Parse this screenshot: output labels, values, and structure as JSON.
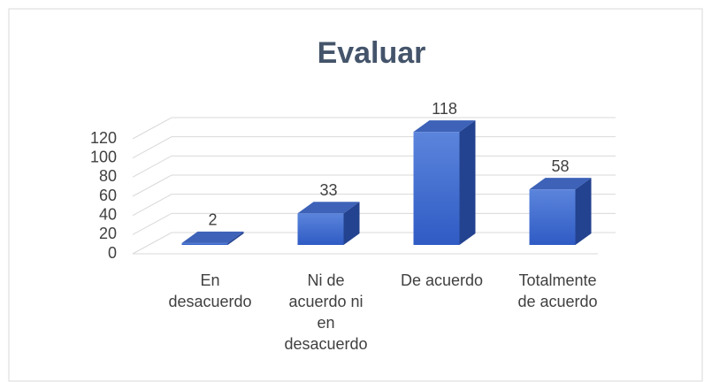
{
  "chart_data": {
    "type": "bar3d",
    "title": "Evaluar",
    "categories": [
      "En desacuerdo",
      "Ni de acuerdo ni en desacuerdo",
      "De acuerdo",
      "Totalmente de acuerdo"
    ],
    "values": [
      2,
      33,
      118,
      58
    ],
    "color": "#4472c4",
    "ylim": [
      0,
      120
    ],
    "yticks": [
      0,
      20,
      40,
      60,
      80,
      100,
      120
    ],
    "grid": true
  }
}
